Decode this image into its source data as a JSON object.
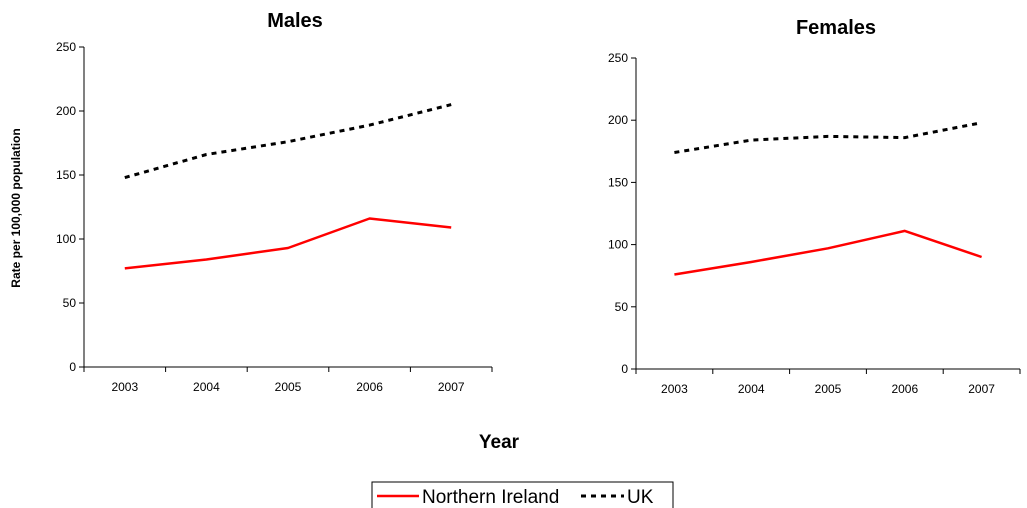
{
  "legend": {
    "series": [
      {
        "label": "Northern Ireland",
        "color": "#ff0000",
        "style": "solid"
      },
      {
        "label": "UK",
        "color": "#000000",
        "style": "dashed"
      }
    ]
  },
  "shared": {
    "ylabel": "Rate per 100,000 population",
    "xlabel": "Year"
  },
  "chart_data": [
    {
      "type": "line",
      "title": "Males",
      "xlabel": "Year",
      "ylabel": "Rate per 100,000 population",
      "categories": [
        "2003",
        "2004",
        "2005",
        "2006",
        "2007"
      ],
      "ylim": [
        0,
        250
      ],
      "yticks": [
        0,
        50,
        100,
        150,
        200,
        250
      ],
      "grid": false,
      "legend_position": "bottom",
      "series": [
        {
          "name": "Northern Ireland",
          "values": [
            77,
            84,
            93,
            116,
            109
          ],
          "color": "#ff0000",
          "style": "solid"
        },
        {
          "name": "UK",
          "values": [
            148,
            166,
            176,
            189,
            205
          ],
          "color": "#000000",
          "style": "dashed"
        }
      ]
    },
    {
      "type": "line",
      "title": "Females",
      "xlabel": "Year",
      "ylabel": "Rate per 100,000 population",
      "categories": [
        "2003",
        "2004",
        "2005",
        "2006",
        "2007"
      ],
      "ylim": [
        0,
        250
      ],
      "yticks": [
        0,
        50,
        100,
        150,
        200,
        250
      ],
      "grid": false,
      "legend_position": "bottom",
      "series": [
        {
          "name": "Northern Ireland",
          "values": [
            76,
            86,
            97,
            111,
            90
          ],
          "color": "#ff0000",
          "style": "solid"
        },
        {
          "name": "UK",
          "values": [
            174,
            184,
            187,
            186,
            198
          ],
          "color": "#000000",
          "style": "dashed"
        }
      ]
    }
  ]
}
